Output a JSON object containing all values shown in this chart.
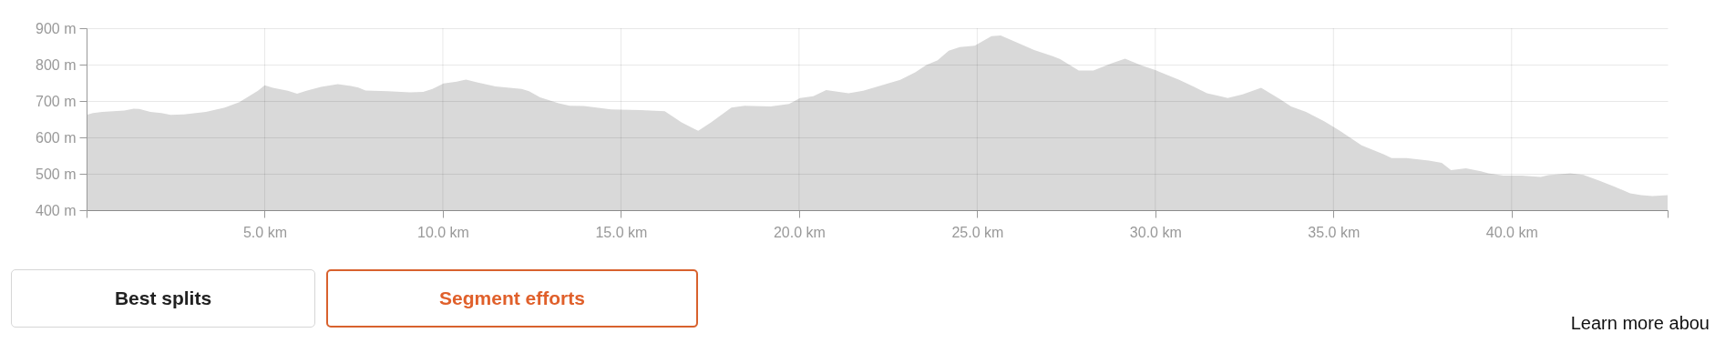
{
  "chart_data": {
    "type": "area",
    "color": "#d9d9d9",
    "x": [
      0,
      0.18,
      0.44,
      1.06,
      1.32,
      1.48,
      1.79,
      2.1,
      2.36,
      2.73,
      3.35,
      3.88,
      4.29,
      4.81,
      5.0,
      5.23,
      5.65,
      5.91,
      6.17,
      6.58,
      7.05,
      7.42,
      7.63,
      7.83,
      8.46,
      9.08,
      9.45,
      9.71,
      10.02,
      10.39,
      10.65,
      10.96,
      11.48,
      12.21,
      12.42,
      12.73,
      13.25,
      13.56,
      13.96,
      14.72,
      15.55,
      16.23,
      16.7,
      17.17,
      17.53,
      18.1,
      18.47,
      19.2,
      19.72,
      20.03,
      20.4,
      20.76,
      21.39,
      21.8,
      22.32,
      22.84,
      23.26,
      23.57,
      23.89,
      24.2,
      24.51,
      24.93,
      25.4,
      25.66,
      25.97,
      26.6,
      27.12,
      27.33,
      27.85,
      28.26,
      28.78,
      29.15,
      29.6,
      30.0,
      30.67,
      31.09,
      31.45,
      31.82,
      32.03,
      32.45,
      32.97,
      33.5,
      33.81,
      34.23,
      34.75,
      35.17,
      35.79,
      36.42,
      36.63,
      37.05,
      37.68,
      38.04,
      38.3,
      38.72,
      39.14,
      39.35,
      39.77,
      40.29,
      40.82,
      41.03,
      41.65,
      42.02,
      42.49,
      42.91,
      43.33,
      43.64,
      43.95,
      44.38
    ],
    "values": [
      662,
      667,
      670,
      674,
      679,
      678,
      670,
      667,
      662,
      663,
      670,
      682,
      697,
      728,
      743,
      736,
      728,
      720,
      728,
      739,
      746,
      741,
      737,
      729,
      727,
      724,
      725,
      733,
      748,
      753,
      759,
      751,
      740,
      733,
      727,
      710,
      694,
      687,
      686,
      677,
      675,
      672,
      641,
      618,
      641,
      682,
      687,
      685,
      692,
      708,
      713,
      730,
      721,
      728,
      743,
      758,
      779,
      799,
      812,
      838,
      848,
      852,
      878,
      880,
      867,
      840,
      823,
      815,
      784,
      784,
      804,
      816,
      798,
      785,
      758,
      739,
      721,
      713,
      708,
      718,
      736,
      705,
      685,
      670,
      644,
      619,
      578,
      553,
      543,
      543,
      536,
      530,
      510,
      515,
      507,
      501,
      495,
      495,
      491,
      496,
      501,
      497,
      480,
      464,
      446,
      441,
      439,
      441
    ],
    "xlim": [
      0,
      44.38
    ],
    "xticks": [
      {
        "value": 0,
        "label": null
      },
      {
        "value": 5,
        "label": "5.0 km"
      },
      {
        "value": 10,
        "label": "10.0 km"
      },
      {
        "value": 15,
        "label": "15.0 km"
      },
      {
        "value": 20,
        "label": "20.0 km"
      },
      {
        "value": 25,
        "label": "25.0 km"
      },
      {
        "value": 30,
        "label": "30.0 km"
      },
      {
        "value": 35,
        "label": "35.0 km"
      },
      {
        "value": 40,
        "label": "40.0 km"
      },
      {
        "value": 44.38,
        "label": null
      }
    ],
    "ylim": [
      400,
      900
    ],
    "yticks": [
      {
        "value": 400,
        "label": "400 m"
      },
      {
        "value": 500,
        "label": "500 m"
      },
      {
        "value": 600,
        "label": "600 m"
      },
      {
        "value": 700,
        "label": "700 m"
      },
      {
        "value": 800,
        "label": "800 m"
      },
      {
        "value": 900,
        "label": "900 m"
      }
    ],
    "grid": true,
    "annotations": [
      "Best splits",
      "Segment efforts",
      "Learn more abou"
    ]
  }
}
